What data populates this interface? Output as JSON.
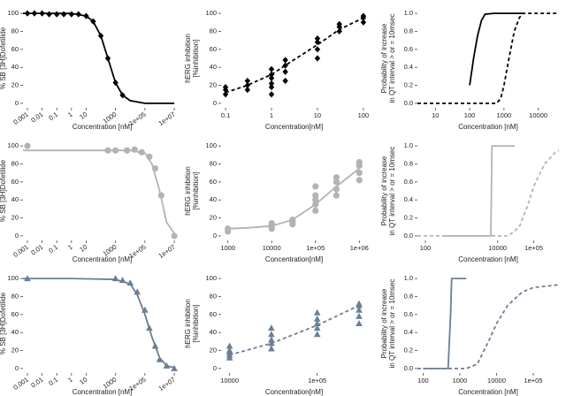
{
  "chart_data": [
    {
      "type": "scatter",
      "xscale": "log",
      "xlim": [
        0.0005,
        30000000
      ],
      "ylim": [
        -5,
        105
      ],
      "xticks": [
        0.001,
        0.01,
        0.1,
        1,
        10,
        1000,
        {
          "value": 100000,
          "label": "1e+05"
        },
        {
          "value": 10000000,
          "label": "1e+07"
        }
      ],
      "yticks": [
        0,
        20,
        40,
        60,
        80,
        100
      ],
      "xlabel": "Concentration [nM]",
      "ylabel": [
        "% SB [3H]Dofetilide"
      ],
      "series": [
        {
          "color": "#000000",
          "marker": "diamond",
          "x": [
            0.001,
            0.003,
            0.01,
            0.03,
            0.1,
            0.3,
            1,
            3,
            10,
            30,
            100,
            300,
            1000,
            3000
          ],
          "values": [
            100,
            100,
            100,
            99,
            99,
            99,
            99,
            99,
            97,
            91,
            75,
            50,
            23,
            9
          ]
        },
        {
          "color": "#000000",
          "dash": "solid",
          "x": [
            0.0005,
            0.01,
            1,
            10,
            30,
            100,
            300,
            1000,
            3000,
            10000,
            100000,
            10000000
          ],
          "values": [
            100,
            100,
            100,
            97,
            91,
            75,
            50,
            23,
            9,
            3,
            0,
            0
          ]
        }
      ]
    },
    {
      "type": "scatter",
      "xscale": "log",
      "xlim": [
        0.08,
        120
      ],
      "ylim": [
        -5,
        105
      ],
      "xticks": [
        0.1,
        1,
        10,
        100
      ],
      "yticks": [
        0,
        20,
        40,
        60,
        80,
        100
      ],
      "xlabel": "Concentration[nM]",
      "ylabel": [
        "hERG inhibition",
        "[%inhibition]"
      ],
      "series": [
        {
          "color": "#000000",
          "marker": "diamond",
          "x": [
            0.1,
            0.1,
            0.1,
            0.3,
            0.3,
            0.3,
            1,
            1,
            1,
            1,
            1,
            1,
            2,
            2,
            2,
            2,
            10,
            10,
            10,
            10,
            30,
            30,
            30,
            100,
            100,
            100
          ],
          "values": [
            10,
            15,
            18,
            15,
            20,
            25,
            10,
            18,
            22,
            28,
            32,
            38,
            25,
            35,
            42,
            48,
            50,
            60,
            68,
            72,
            80,
            85,
            88,
            90,
            95,
            97
          ]
        },
        {
          "color": "#000000",
          "dash": "dashed",
          "x": [
            0.1,
            0.3,
            1,
            3,
            10,
            30,
            100
          ],
          "values": [
            12,
            20,
            32,
            48,
            65,
            82,
            95
          ]
        }
      ]
    },
    {
      "type": "line",
      "xscale": "log",
      "xlim": [
        3,
        40000
      ],
      "ylim": [
        -0.05,
        1.05
      ],
      "xticks": [
        10,
        100,
        1000,
        10000
      ],
      "yticks": [
        {
          "value": 0,
          "label": "0.0"
        },
        {
          "value": 0.2,
          "label": "0.2"
        },
        {
          "value": 0.4,
          "label": "0.4"
        },
        {
          "value": 0.6,
          "label": "0.6"
        },
        {
          "value": 0.8,
          "label": "0.8"
        },
        {
          "value": 1,
          "label": "1.0"
        }
      ],
      "xlabel": "Concentration [nM]",
      "ylabel": [
        "Probability of increase",
        "in QT interval > or = 10msec"
      ],
      "series": [
        {
          "color": "#000000",
          "dash": "solid",
          "x": [
            100,
            130,
            170,
            220,
            280,
            500,
            1000,
            3500
          ],
          "values": [
            0.2,
            0.5,
            0.75,
            0.92,
            0.99,
            1,
            1,
            1
          ]
        },
        {
          "color": "#000000",
          "dash": "dashed",
          "x": [
            3,
            300,
            600,
            800,
            1000,
            1400,
            2000,
            2800,
            3500,
            40000
          ],
          "values": [
            0,
            0,
            0,
            0.05,
            0.2,
            0.5,
            0.8,
            0.95,
            1,
            1
          ]
        }
      ]
    },
    {
      "type": "scatter",
      "xscale": "log",
      "xlim": [
        0.0005,
        30000000
      ],
      "ylim": [
        -5,
        105
      ],
      "xticks": [
        0.001,
        0.01,
        0.1,
        1,
        10,
        1000,
        {
          "value": 100000,
          "label": "1e+05"
        },
        {
          "value": 10000000,
          "label": "1e+07"
        }
      ],
      "yticks": [
        0,
        20,
        40,
        60,
        80,
        100
      ],
      "xlabel": "Concentration [nM]",
      "ylabel": [
        "% SB [3H]Dofetilide"
      ],
      "series": [
        {
          "color": "#b3b3b3",
          "marker": "circle",
          "x": [
            0.001,
            300,
            1000,
            6000,
            20000,
            60000,
            200000,
            500000,
            1300000,
            10000000
          ],
          "values": [
            100,
            95,
            95,
            95,
            96,
            93,
            88,
            75,
            45,
            0
          ]
        },
        {
          "color": "#b3b3b3",
          "dash": "solid",
          "x": [
            0.0005,
            0.01,
            1,
            100,
            10000,
            100000,
            300000,
            1000000,
            3000000,
            10000000
          ],
          "values": [
            95,
            95,
            95,
            95,
            95,
            92,
            80,
            50,
            15,
            3
          ]
        }
      ]
    },
    {
      "type": "scatter",
      "xscale": "log",
      "xlim": [
        700,
        1500000
      ],
      "ylim": [
        -5,
        105
      ],
      "xticks": [
        1000,
        10000,
        {
          "value": 100000,
          "label": "1e+05"
        },
        {
          "value": 1000000,
          "label": "1e+06"
        }
      ],
      "yticks": [
        0,
        20,
        40,
        60,
        80,
        100
      ],
      "xlabel": "Concentration[nM]",
      "ylabel": [
        "hERG inhibition",
        "[%inhibition]"
      ],
      "series": [
        {
          "color": "#b3b3b3",
          "marker": "circle",
          "x": [
            1000,
            1000,
            10000,
            10000,
            10000,
            10000,
            30000,
            30000,
            30000,
            100000,
            100000,
            100000,
            100000,
            100000,
            300000,
            300000,
            300000,
            300000,
            1000000,
            1000000,
            1000000,
            1000000
          ],
          "values": [
            5,
            8,
            8,
            10,
            12,
            14,
            13,
            15,
            18,
            28,
            35,
            40,
            45,
            55,
            45,
            52,
            60,
            65,
            62,
            70,
            78,
            82
          ]
        },
        {
          "color": "#b3b3b3",
          "dash": "solid",
          "x": [
            1000,
            3000,
            10000,
            30000,
            100000,
            300000,
            1000000
          ],
          "values": [
            8,
            9,
            11,
            18,
            35,
            55,
            75
          ]
        }
      ]
    },
    {
      "type": "line",
      "xscale": "log",
      "xlim": [
        60,
        500000
      ],
      "ylim": [
        -0.05,
        1.05
      ],
      "xticks": [
        100,
        10000,
        {
          "value": 100000,
          "label": "1e+05"
        }
      ],
      "yticks": [
        {
          "value": 0,
          "label": "0.0"
        },
        {
          "value": 0.2,
          "label": "0.2"
        },
        {
          "value": 0.4,
          "label": "0.4"
        },
        {
          "value": 0.6,
          "label": "0.6"
        },
        {
          "value": 0.8,
          "label": "0.8"
        },
        {
          "value": 1,
          "label": "1.0"
        }
      ],
      "xlabel": "Concentration [nM]",
      "ylabel": [
        "Probability of increase",
        "in QT interval > or = 10msec"
      ],
      "series": [
        {
          "color": "#b3b3b3",
          "dash": "solid",
          "x": [
            300,
            6500,
            7000,
            30000
          ],
          "values": [
            0,
            0,
            1,
            1
          ]
        },
        {
          "color": "#b3b3b3",
          "dash": "dashed",
          "x": [
            60,
            20000,
            40000,
            70000,
            100000,
            200000,
            400000,
            500000
          ],
          "values": [
            0,
            0,
            0.1,
            0.35,
            0.55,
            0.8,
            0.93,
            0.95
          ]
        }
      ]
    },
    {
      "type": "scatter",
      "xscale": "log",
      "xlim": [
        0.0005,
        30000000
      ],
      "ylim": [
        -5,
        105
      ],
      "xticks": [
        0.001,
        0.01,
        0.1,
        1,
        10,
        1000,
        {
          "value": 100000,
          "label": "1e+05"
        },
        {
          "value": 10000000,
          "label": "1e+07"
        }
      ],
      "yticks": [
        0,
        20,
        40,
        60,
        80,
        100
      ],
      "xlabel": "Concentration [nM]",
      "ylabel": [
        "% SB [3H]Dofetilide"
      ],
      "series": [
        {
          "color": "#6b7f95",
          "marker": "triangle",
          "x": [
            0.001,
            1000,
            3000,
            10000,
            30000,
            100000,
            200000,
            500000,
            1000000,
            3000000,
            10000000
          ],
          "values": [
            100,
            100,
            98,
            95,
            85,
            65,
            45,
            25,
            10,
            3,
            0
          ]
        },
        {
          "color": "#6b7f95",
          "dash": "solid",
          "x": [
            0.0005,
            1,
            1000,
            10000,
            30000,
            100000,
            300000,
            1000000,
            3000000,
            10000000
          ],
          "values": [
            100,
            100,
            99,
            94,
            82,
            60,
            35,
            12,
            3,
            1
          ]
        }
      ]
    },
    {
      "type": "scatter",
      "xscale": "log",
      "xlim": [
        8000,
        370000
      ],
      "ylim": [
        -5,
        105
      ],
      "xticks": [
        10000,
        {
          "value": 100000,
          "label": "1e+05"
        }
      ],
      "yticks": [
        0,
        20,
        40,
        60,
        80,
        100
      ],
      "xlabel": "Concentration[nM]",
      "ylabel": [
        "hERG inhibition",
        "[%inhibition]"
      ],
      "series": [
        {
          "color": "#6b7f95",
          "marker": "triangle",
          "x": [
            10000,
            10000,
            10000,
            10000,
            10000,
            30000,
            30000,
            30000,
            30000,
            30000,
            100000,
            100000,
            100000,
            100000,
            100000,
            300000,
            300000,
            300000,
            300000,
            300000
          ],
          "values": [
            12,
            15,
            18,
            20,
            25,
            22,
            28,
            32,
            38,
            45,
            38,
            45,
            50,
            55,
            62,
            50,
            58,
            65,
            70,
            72
          ]
        },
        {
          "color": "#6b7f95",
          "dash": "dashed",
          "x": [
            10000,
            30000,
            100000,
            300000
          ],
          "values": [
            15,
            28,
            48,
            70
          ]
        }
      ]
    },
    {
      "type": "line",
      "xscale": "log",
      "xlim": [
        70,
        500000
      ],
      "ylim": [
        -0.05,
        1.05
      ],
      "xticks": [
        100,
        1000,
        10000,
        {
          "value": 100000,
          "label": "1e+05"
        }
      ],
      "yticks": [
        {
          "value": 0,
          "label": "0.0"
        },
        {
          "value": 0.2,
          "label": "0.2"
        },
        {
          "value": 0.4,
          "label": "0.4"
        },
        {
          "value": 0.6,
          "label": "0.6"
        },
        {
          "value": 0.8,
          "label": "0.8"
        },
        {
          "value": 1,
          "label": "1.0"
        }
      ],
      "xlabel": "Concentration [nM]",
      "ylabel": [
        "Probability of increase",
        "in QT interval > or = 10msec"
      ],
      "series": [
        {
          "color": "#6b7f95",
          "dash": "solid",
          "x": [
            100,
            480,
            560,
            600,
            1500
          ],
          "values": [
            0,
            0,
            0.6,
            1,
            1
          ]
        },
        {
          "color": "#6b7f95",
          "dash": "dashed",
          "x": [
            70,
            1500,
            3000,
            6000,
            10000,
            20000,
            50000,
            100000,
            500000
          ],
          "values": [
            0,
            0,
            0.05,
            0.3,
            0.5,
            0.7,
            0.85,
            0.9,
            0.93
          ]
        }
      ]
    }
  ]
}
